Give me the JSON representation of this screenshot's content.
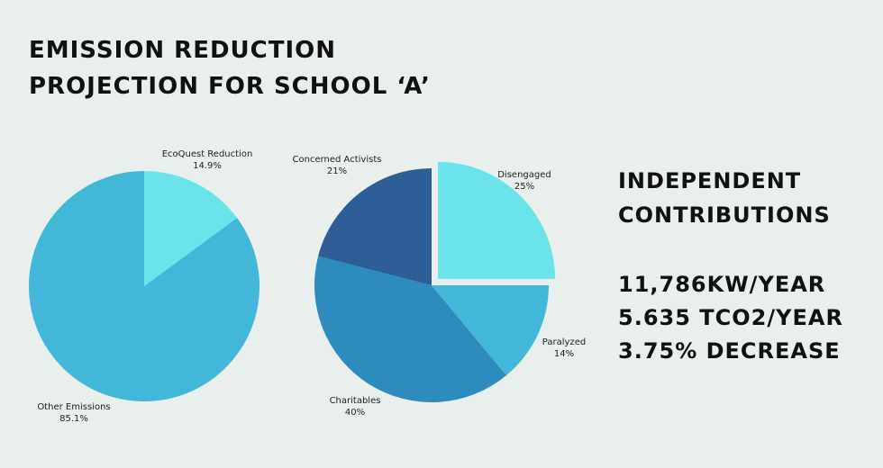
{
  "header": {
    "title_line1": "EMISSION REDUCTION",
    "title_line2": "PROJECTION FOR SCHOOL ‘A’"
  },
  "stats": {
    "heading_line1": "INDEPENDENT",
    "heading_line2": "CONTRIBUTIONS",
    "lines": [
      "11,786KW/YEAR",
      "5.635 TCO2/YEAR",
      "3.75% DECREASE"
    ]
  },
  "chart_data": [
    {
      "type": "pie",
      "slices": [
        {
          "name": "EcoQuest Reduction",
          "value": 14.9,
          "label": "14.9%",
          "color": "#6ae4ea"
        },
        {
          "name": "Other Emissions",
          "value": 85.1,
          "label": "85.1%",
          "color": "#42b7d7"
        }
      ]
    },
    {
      "type": "pie",
      "slices": [
        {
          "name": "Disengaged",
          "value": 25,
          "label": "25%",
          "color": "#6ae4ea"
        },
        {
          "name": "Paralyzed",
          "value": 14,
          "label": "14%",
          "color": "#42b7d7"
        },
        {
          "name": "Charitables",
          "value": 40,
          "label": "40%",
          "color": "#2e8bbd"
        },
        {
          "name": "Concerned Activists",
          "value": 21,
          "label": "21%",
          "color": "#2d5e98"
        }
      ]
    }
  ]
}
